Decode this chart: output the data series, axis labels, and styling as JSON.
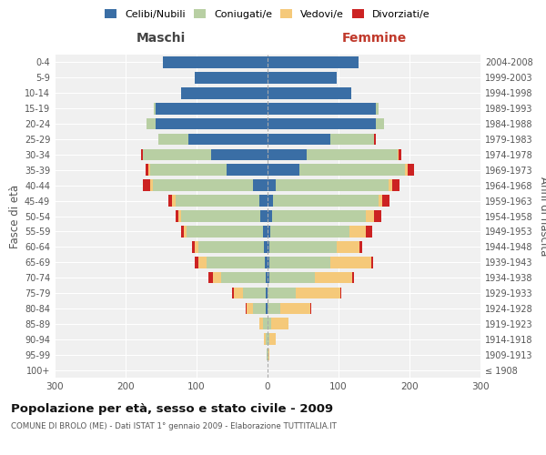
{
  "age_groups": [
    "100+",
    "95-99",
    "90-94",
    "85-89",
    "80-84",
    "75-79",
    "70-74",
    "65-69",
    "60-64",
    "55-59",
    "50-54",
    "45-49",
    "40-44",
    "35-39",
    "30-34",
    "25-29",
    "20-24",
    "15-19",
    "10-14",
    "5-9",
    "0-4"
  ],
  "birth_years": [
    "≤ 1908",
    "1909-1913",
    "1914-1918",
    "1919-1923",
    "1924-1928",
    "1929-1933",
    "1934-1938",
    "1939-1943",
    "1944-1948",
    "1949-1953",
    "1954-1958",
    "1959-1963",
    "1964-1968",
    "1969-1973",
    "1974-1978",
    "1979-1983",
    "1984-1988",
    "1989-1993",
    "1994-1998",
    "1999-2003",
    "2004-2008"
  ],
  "maschi": {
    "celibi": [
      0,
      0,
      0,
      0,
      2,
      2,
      3,
      4,
      5,
      6,
      10,
      12,
      20,
      58,
      80,
      112,
      158,
      158,
      122,
      102,
      148
    ],
    "coniugati": [
      0,
      1,
      3,
      6,
      18,
      32,
      62,
      82,
      92,
      108,
      112,
      118,
      142,
      108,
      96,
      42,
      12,
      2,
      0,
      0,
      0
    ],
    "vedovi": [
      0,
      0,
      2,
      5,
      10,
      14,
      12,
      12,
      6,
      4,
      4,
      4,
      3,
      2,
      0,
      0,
      0,
      0,
      0,
      0,
      0
    ],
    "divorziati": [
      0,
      0,
      0,
      0,
      1,
      2,
      6,
      4,
      4,
      4,
      3,
      6,
      10,
      4,
      2,
      0,
      0,
      0,
      0,
      0,
      0
    ]
  },
  "femmine": {
    "nubili": [
      0,
      0,
      0,
      0,
      0,
      0,
      2,
      3,
      3,
      4,
      6,
      8,
      12,
      45,
      55,
      88,
      152,
      152,
      118,
      98,
      128
    ],
    "coniugate": [
      0,
      1,
      2,
      5,
      18,
      40,
      65,
      85,
      95,
      112,
      132,
      148,
      158,
      148,
      128,
      62,
      12,
      5,
      0,
      0,
      0
    ],
    "vedove": [
      0,
      2,
      10,
      25,
      42,
      62,
      52,
      58,
      32,
      22,
      12,
      6,
      6,
      4,
      2,
      0,
      0,
      0,
      0,
      0,
      0
    ],
    "divorziate": [
      0,
      0,
      0,
      0,
      1,
      2,
      3,
      3,
      3,
      10,
      10,
      10,
      10,
      10,
      3,
      2,
      0,
      0,
      0,
      0,
      0
    ]
  },
  "colors": {
    "celibi": "#3a6ea5",
    "coniugati": "#b8cfa3",
    "vedovi": "#f5c97a",
    "divorziati": "#cc2222"
  },
  "xlim": 300,
  "title": "Popolazione per età, sesso e stato civile - 2009",
  "subtitle": "COMUNE DI BROLO (ME) - Dati ISTAT 1° gennaio 2009 - Elaborazione TUTTITALIA.IT",
  "ylabel_left": "Fasce di età",
  "ylabel_right": "Anni di nascita",
  "xlabel_maschi": "Maschi",
  "xlabel_femmine": "Femmine",
  "bg_color": "#ffffff",
  "plot_bg": "#f0f0f0",
  "grid_color": "#ffffff"
}
